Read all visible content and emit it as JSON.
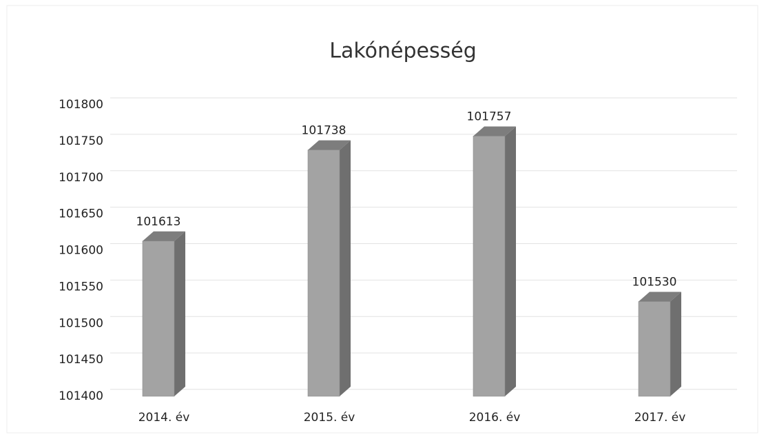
{
  "chart_data": {
    "type": "bar",
    "title": "Lakónépesség",
    "categories": [
      "2014. év",
      "2015. év",
      "2016. év",
      "2017. év"
    ],
    "values": [
      101613,
      101738,
      101757,
      101530
    ],
    "color": "#a3a3a3",
    "ylim": [
      101400,
      101800
    ],
    "yticks": [
      101400,
      101450,
      101500,
      101550,
      101600,
      101650,
      101700,
      101750,
      101800
    ],
    "grid": true
  }
}
